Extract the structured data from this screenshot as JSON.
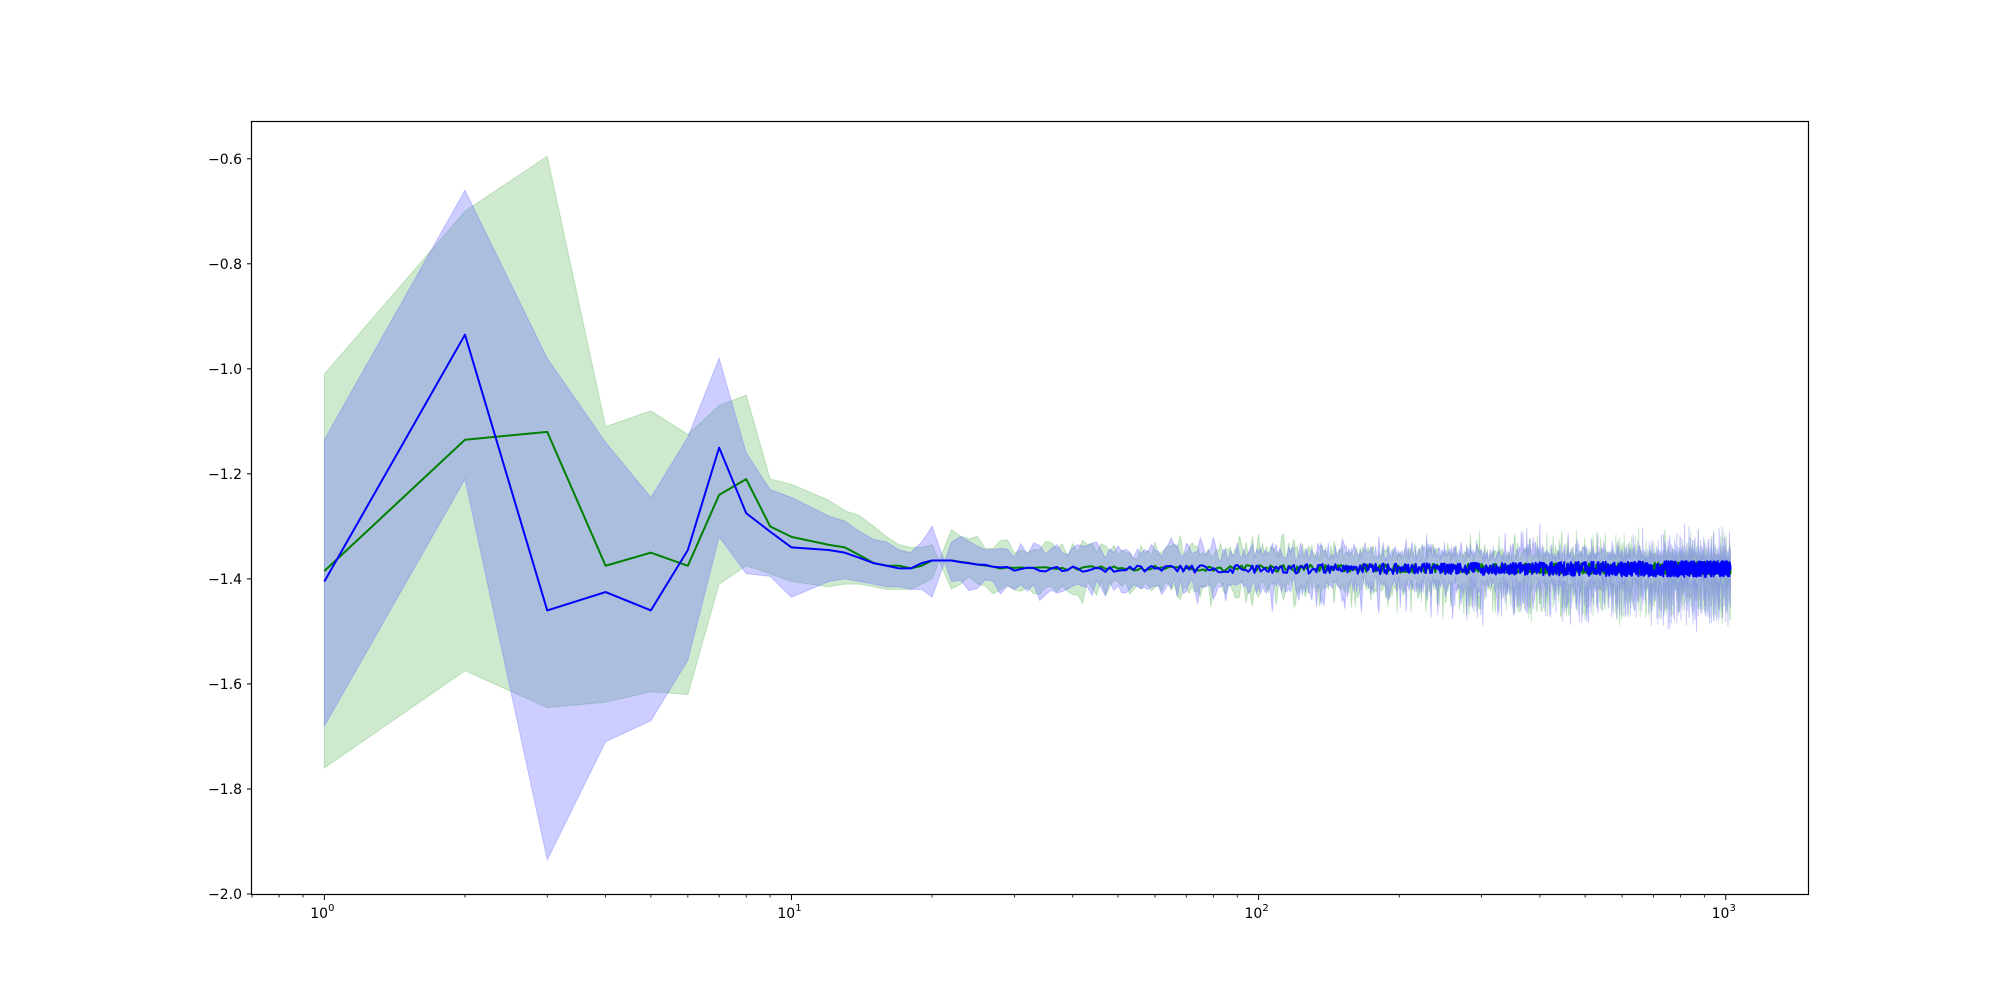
{
  "chart_data": {
    "type": "line",
    "title": "",
    "xlabel": "",
    "ylabel": "",
    "xscale": "log",
    "xlim": [
      0.7,
      1500
    ],
    "ylim": [
      -2.0,
      -0.53
    ],
    "grid": false,
    "legend": "none",
    "x_ticks": [
      {
        "value": 1,
        "base": "10",
        "exp": "0"
      },
      {
        "value": 10,
        "base": "10",
        "exp": "1"
      },
      {
        "value": 100,
        "base": "10",
        "exp": "2"
      },
      {
        "value": 1000,
        "base": "10",
        "exp": "3"
      }
    ],
    "y_ticks": [
      {
        "value": -0.6,
        "label": "−0.6"
      },
      {
        "value": -0.8,
        "label": "−0.8"
      },
      {
        "value": -1.0,
        "label": "−1.0"
      },
      {
        "value": -1.2,
        "label": "−1.2"
      },
      {
        "value": -1.4,
        "label": "−1.4"
      },
      {
        "value": -1.6,
        "label": "−1.6"
      },
      {
        "value": -1.8,
        "label": "−1.8"
      },
      {
        "value": -2.0,
        "label": "−2.0"
      }
    ],
    "series": [
      {
        "color": "#008000",
        "band_color": "#2ca02c",
        "band_opacity": 0.23,
        "tail": {
          "x_start": 22,
          "x_end": 1024,
          "center": -1.38,
          "noise": 0.006,
          "band_half_start": 0.04,
          "band_half_end": 0.022
        },
        "x": [
          1,
          2,
          3,
          4,
          5,
          6,
          7,
          8,
          9,
          10,
          12,
          13,
          14,
          15,
          16,
          17,
          18,
          19,
          20
        ],
        "y": [
          -1.385,
          -1.135,
          -1.12,
          -1.375,
          -1.35,
          -1.375,
          -1.24,
          -1.21,
          -1.3,
          -1.32,
          -1.335,
          -1.34,
          -1.355,
          -1.37,
          -1.375,
          -1.375,
          -1.38,
          -1.375,
          -1.365
        ],
        "upper": [
          -1.01,
          -0.7,
          -0.595,
          -1.11,
          -1.08,
          -1.125,
          -1.07,
          -1.05,
          -1.21,
          -1.22,
          -1.25,
          -1.27,
          -1.28,
          -1.3,
          -1.32,
          -1.335,
          -1.34,
          -1.34,
          -1.335
        ],
        "lower": [
          -1.76,
          -1.575,
          -1.645,
          -1.635,
          -1.615,
          -1.62,
          -1.41,
          -1.375,
          -1.39,
          -1.405,
          -1.415,
          -1.41,
          -1.41,
          -1.415,
          -1.42,
          -1.42,
          -1.42,
          -1.41,
          -1.4
        ]
      },
      {
        "color": "#0000ff",
        "band_color": "#6666ff",
        "band_opacity": 0.33,
        "tail": {
          "x_start": 22,
          "x_end": 1024,
          "center": -1.381,
          "noise": 0.008,
          "band_half_start": 0.038,
          "band_half_end": 0.024
        },
        "x": [
          1,
          2,
          3,
          4,
          5,
          6,
          7,
          8,
          9,
          10,
          12,
          13,
          14,
          15,
          16,
          17,
          18,
          19,
          20
        ],
        "y": [
          -1.405,
          -0.935,
          -1.46,
          -1.425,
          -1.46,
          -1.345,
          -1.15,
          -1.275,
          -1.31,
          -1.34,
          -1.345,
          -1.35,
          -1.36,
          -1.37,
          -1.375,
          -1.38,
          -1.38,
          -1.37,
          -1.365
        ],
        "upper": [
          -1.135,
          -0.66,
          -0.98,
          -1.14,
          -1.245,
          -1.13,
          -0.98,
          -1.16,
          -1.23,
          -1.245,
          -1.28,
          -1.29,
          -1.31,
          -1.325,
          -1.33,
          -1.345,
          -1.35,
          -1.33,
          -1.3
        ],
        "lower": [
          -1.68,
          -1.21,
          -1.935,
          -1.71,
          -1.67,
          -1.555,
          -1.32,
          -1.39,
          -1.395,
          -1.435,
          -1.405,
          -1.4,
          -1.405,
          -1.41,
          -1.415,
          -1.415,
          -1.42,
          -1.42,
          -1.435
        ]
      }
    ]
  }
}
